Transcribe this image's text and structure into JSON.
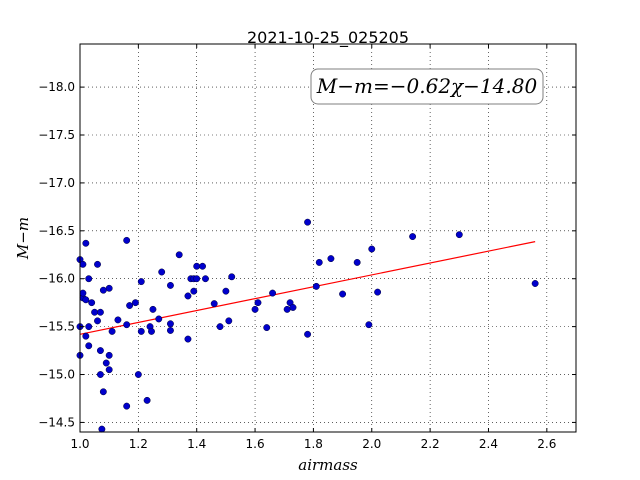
{
  "chart_data": {
    "type": "scatter",
    "title": "2021-10-25_025205",
    "xlabel": "airmass",
    "ylabel": "M−m",
    "xlim": [
      1.0,
      2.7
    ],
    "ylim": [
      -18.45,
      -14.4
    ],
    "y_inverted": true,
    "grid": true,
    "xticks": [
      "1.0",
      "1.2",
      "1.4",
      "1.6",
      "1.8",
      "2.0",
      "2.2",
      "2.4",
      "2.6"
    ],
    "yticks": [
      "−14.5",
      "−15.0",
      "−15.5",
      "−16.0",
      "−16.5",
      "−17.0",
      "−17.5",
      "−18.0"
    ],
    "annotation": "M−m=−0.62χ−14.80",
    "fit": {
      "slope": -0.62,
      "intercept": -14.8,
      "x_range": [
        1.0,
        2.56
      ],
      "color": "#ff0000"
    },
    "point_color": "#0000cc",
    "points": [
      [
        1.0,
        -15.2
      ],
      [
        1.0,
        -15.5
      ],
      [
        1.0,
        -16.2
      ],
      [
        1.01,
        -16.15
      ],
      [
        1.01,
        -15.8
      ],
      [
        1.01,
        -15.85
      ],
      [
        1.02,
        -15.4
      ],
      [
        1.02,
        -16.37
      ],
      [
        1.02,
        -15.78
      ],
      [
        1.03,
        -15.3
      ],
      [
        1.03,
        -15.5
      ],
      [
        1.03,
        -16.0
      ],
      [
        1.04,
        -15.75
      ],
      [
        1.05,
        -15.65
      ],
      [
        1.06,
        -15.56
      ],
      [
        1.06,
        -16.15
      ],
      [
        1.07,
        -15.0
      ],
      [
        1.07,
        -15.25
      ],
      [
        1.07,
        -15.65
      ],
      [
        1.075,
        -14.43
      ],
      [
        1.08,
        -14.82
      ],
      [
        1.08,
        -15.88
      ],
      [
        1.09,
        -15.12
      ],
      [
        1.1,
        -15.05
      ],
      [
        1.1,
        -15.2
      ],
      [
        1.1,
        -15.9
      ],
      [
        1.11,
        -15.45
      ],
      [
        1.13,
        -15.57
      ],
      [
        1.16,
        -14.67
      ],
      [
        1.16,
        -15.52
      ],
      [
        1.16,
        -16.4
      ],
      [
        1.17,
        -15.72
      ],
      [
        1.19,
        -15.75
      ],
      [
        1.2,
        -15.0
      ],
      [
        1.21,
        -15.45
      ],
      [
        1.21,
        -15.97
      ],
      [
        1.23,
        -14.73
      ],
      [
        1.24,
        -15.5
      ],
      [
        1.245,
        -15.45
      ],
      [
        1.25,
        -15.68
      ],
      [
        1.27,
        -15.58
      ],
      [
        1.28,
        -16.07
      ],
      [
        1.31,
        -15.46
      ],
      [
        1.31,
        -15.53
      ],
      [
        1.31,
        -15.93
      ],
      [
        1.34,
        -16.25
      ],
      [
        1.37,
        -15.37
      ],
      [
        1.37,
        -15.82
      ],
      [
        1.38,
        -16.0
      ],
      [
        1.39,
        -15.87
      ],
      [
        1.39,
        -16.0
      ],
      [
        1.4,
        -16.13
      ],
      [
        1.4,
        -16.0
      ],
      [
        1.42,
        -16.13
      ],
      [
        1.43,
        -16.0
      ],
      [
        1.46,
        -15.74
      ],
      [
        1.48,
        -15.5
      ],
      [
        1.5,
        -15.87
      ],
      [
        1.51,
        -15.56
      ],
      [
        1.52,
        -16.02
      ],
      [
        1.6,
        -15.68
      ],
      [
        1.61,
        -15.75
      ],
      [
        1.64,
        -15.49
      ],
      [
        1.66,
        -15.85
      ],
      [
        1.71,
        -15.68
      ],
      [
        1.72,
        -15.75
      ],
      [
        1.73,
        -15.7
      ],
      [
        1.78,
        -15.42
      ],
      [
        1.78,
        -16.59
      ],
      [
        1.81,
        -15.92
      ],
      [
        1.82,
        -16.17
      ],
      [
        1.86,
        -16.21
      ],
      [
        1.9,
        -15.84
      ],
      [
        1.95,
        -16.17
      ],
      [
        1.99,
        -15.52
      ],
      [
        2.0,
        -16.31
      ],
      [
        2.02,
        -15.86
      ],
      [
        2.14,
        -16.44
      ],
      [
        2.3,
        -16.46
      ],
      [
        2.56,
        -15.95
      ]
    ]
  }
}
